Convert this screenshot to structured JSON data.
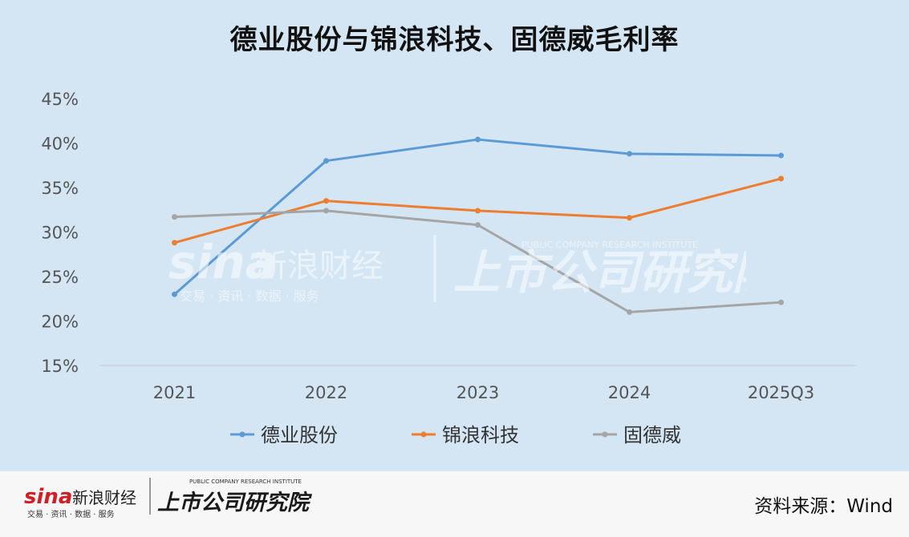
{
  "chart_data": {
    "type": "line",
    "title": "德业股份与锦浪科技、固德威毛利率",
    "categories": [
      "2021",
      "2022",
      "2023",
      "2024",
      "2025Q3"
    ],
    "y_tick_labels": [
      "15%",
      "20%",
      "25%",
      "30%",
      "35%",
      "40%",
      "45%"
    ],
    "ylim": [
      15,
      45
    ],
    "y_step": 5,
    "grid": false,
    "legend_position": "bottom",
    "series": [
      {
        "name": "德业股份",
        "color": "#5b9bd5",
        "values": [
          23.0,
          38.0,
          40.4,
          38.8,
          38.6
        ]
      },
      {
        "name": "锦浪科技",
        "color": "#ed7d31",
        "values": [
          28.8,
          33.5,
          32.4,
          31.6,
          36.0
        ]
      },
      {
        "name": "固德威",
        "color": "#a5a5a5",
        "values": [
          31.7,
          32.4,
          30.8,
          21.0,
          22.1
        ]
      }
    ]
  },
  "watermark": {
    "brand": "sina",
    "name": "新浪财经",
    "tagline": "交易 · 资讯 · 数据 · 服务",
    "institute": "上市公司研究院",
    "institute_en": "PUBLIC COMPANY RESEARCH INSTITUTE"
  },
  "footer": {
    "brand": "sina",
    "name": "新浪财经",
    "tagline": "交易 · 资讯 · 数据 · 服务",
    "institute": "上市公司研究院",
    "institute_en": "PUBLIC COMPANY RESEARCH INSTITUTE",
    "source": "资料来源：Wind"
  }
}
